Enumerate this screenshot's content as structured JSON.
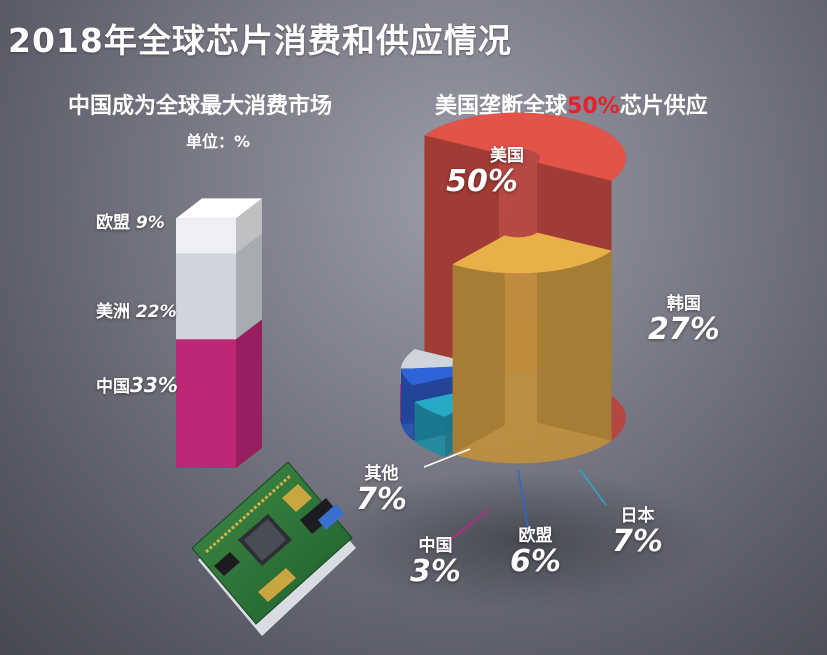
{
  "title": "2018年全球芯片消费和供应情况",
  "left": {
    "subtitle": "中国成为全球最大消费市场",
    "unit": "单位：%"
  },
  "right": {
    "subtitle_prefix": "美国垄断全球",
    "subtitle_highlight": "50%",
    "subtitle_suffix": "芯片供应"
  },
  "chart_data": [
    {
      "type": "bar",
      "title": "中国成为全球最大消费市场",
      "unit": "单位：%",
      "categories": [
        "中国",
        "美洲",
        "欧盟"
      ],
      "values": [
        33,
        22,
        9
      ],
      "labels": [
        "33%",
        "22%",
        "9%"
      ],
      "colors": [
        "#c2287a",
        "#d8dbe2",
        "#f4f6f9"
      ]
    },
    {
      "type": "pie",
      "title": "美国垄断全球50%芯片供应",
      "categories": [
        "美国",
        "韩国",
        "日本",
        "欧盟",
        "中国",
        "其他"
      ],
      "values": [
        50,
        27,
        7,
        6,
        3,
        7
      ],
      "labels": [
        "50%",
        "27%",
        "7%",
        "6%",
        "3%",
        "7%"
      ],
      "colors": [
        "#e2534a",
        "#e9b04a",
        "#27a9c6",
        "#2f63d8",
        "#c3258a",
        "#cfd4dd"
      ]
    }
  ]
}
